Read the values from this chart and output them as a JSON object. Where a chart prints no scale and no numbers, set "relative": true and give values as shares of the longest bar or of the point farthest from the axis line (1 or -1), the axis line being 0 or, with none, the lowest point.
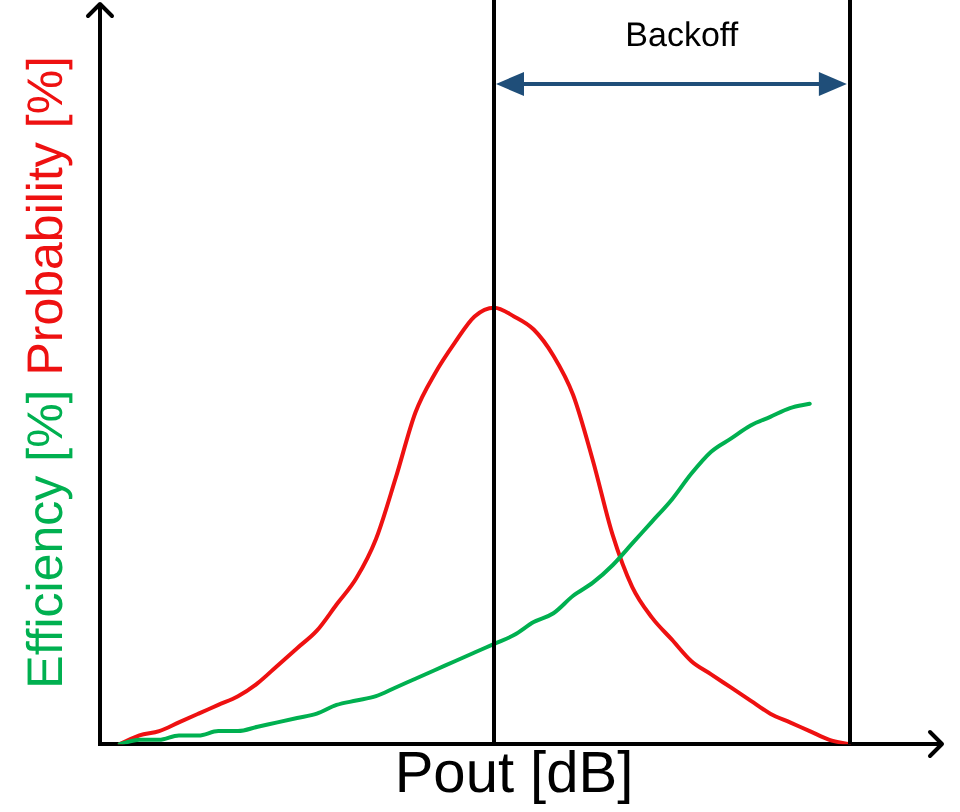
{
  "chart_data": {
    "type": "line",
    "xlabel": "Pout [dB]",
    "relative": true,
    "categories": [
      null,
      null,
      null,
      null,
      null,
      null,
      null,
      null,
      null,
      null,
      null,
      null,
      null,
      null,
      null,
      null,
      null,
      null,
      null,
      null,
      null,
      null,
      null,
      null,
      null,
      null,
      null,
      null,
      null,
      null,
      null,
      null,
      null,
      null,
      null,
      null,
      null,
      null,
      null,
      null,
      null,
      null,
      null
    ],
    "series": [
      {
        "name": "Efficiency [%]",
        "color": "#00b050",
        "values": [
          null,
          0,
          0.01,
          0.01,
          0.02,
          0.02,
          0.03,
          0.03,
          0.04,
          0.05,
          0.06,
          0.07,
          0.09,
          0.1,
          0.11,
          0.13,
          0.15,
          0.17,
          0.19,
          0.21,
          0.23,
          0.25,
          0.28,
          0.3,
          0.34,
          0.37,
          0.41,
          0.46,
          0.51,
          0.56,
          0.62,
          0.67,
          0.7,
          0.73,
          0.75,
          0.77,
          0.78,
          null,
          null,
          null,
          null,
          null,
          null
        ]
      },
      {
        "name": "Probability [%]",
        "color": "#ee1111",
        "values": [
          null,
          0,
          0.02,
          0.03,
          0.05,
          0.07,
          0.09,
          0.11,
          0.14,
          0.18,
          0.22,
          0.26,
          0.32,
          0.38,
          0.47,
          0.61,
          0.76,
          0.85,
          0.92,
          0.98,
          1,
          0.98,
          0.95,
          0.89,
          0.8,
          0.65,
          0.48,
          0.36,
          0.29,
          0.24,
          0.19,
          0.16,
          0.13,
          0.1,
          0.07,
          0.05,
          0.03,
          0.01,
          0,
          null,
          null,
          null,
          null
        ]
      }
    ],
    "annotations": [
      "Backoff"
    ]
  }
}
